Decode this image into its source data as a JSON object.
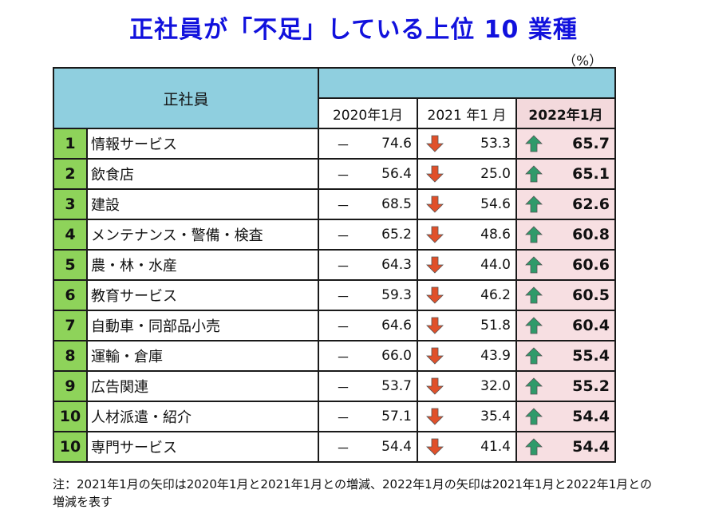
{
  "title": "正社員が「不足」している上位 10 業種",
  "unit": "（%）",
  "table": {
    "corner_label": "正社員",
    "columns": [
      "2020年1月",
      "2021 年1 月",
      "2022年1月"
    ],
    "rows": [
      {
        "rank": "1",
        "industry": "情報サービス",
        "v2020": "74.6",
        "v2021": "53.3",
        "v2022": "65.7"
      },
      {
        "rank": "2",
        "industry": "飲食店",
        "v2020": "56.4",
        "v2021": "25.0",
        "v2022": "65.1"
      },
      {
        "rank": "3",
        "industry": "建設",
        "v2020": "68.5",
        "v2021": "54.6",
        "v2022": "62.6"
      },
      {
        "rank": "4",
        "industry": "メンテナンス・警備・検査",
        "v2020": "65.2",
        "v2021": "48.6",
        "v2022": "60.8"
      },
      {
        "rank": "5",
        "industry": "農・林・水産",
        "v2020": "64.3",
        "v2021": "44.0",
        "v2022": "60.6"
      },
      {
        "rank": "6",
        "industry": "教育サービス",
        "v2020": "59.3",
        "v2021": "46.2",
        "v2022": "60.5"
      },
      {
        "rank": "7",
        "industry": "自動車・同部品小売",
        "v2020": "64.6",
        "v2021": "51.8",
        "v2022": "60.4"
      },
      {
        "rank": "8",
        "industry": "運輸・倉庫",
        "v2020": "66.0",
        "v2021": "43.9",
        "v2022": "55.4"
      },
      {
        "rank": "9",
        "industry": "広告関連",
        "v2020": "53.7",
        "v2021": "32.0",
        "v2022": "55.2"
      },
      {
        "rank": "10",
        "industry": "人材派遣・紹介",
        "v2020": "57.1",
        "v2021": "35.4",
        "v2022": "54.4"
      },
      {
        "rank": "10",
        "industry": "専門サービス",
        "v2020": "54.4",
        "v2021": "41.4",
        "v2022": "54.4"
      }
    ]
  },
  "dash": "－",
  "note": "注：2021年1月の矢印は2020年1月と2021年1月との増減、2022年1月の矢印は2021年1月と2022年1月との増減を表す",
  "colors": {
    "up": "#2f9a6a",
    "down": "#e0502a",
    "rank_bg": "#8ed35a",
    "header_bg": "#8fcfdf",
    "highlight_bg": "#f7dfe2"
  },
  "chart_data": {
    "type": "table",
    "title": "正社員が「不足」している上位 10 業種",
    "unit": "（%）",
    "columns": [
      "2020年1月",
      "2021 年1 月",
      "2022年1月"
    ],
    "categories": [
      "情報サービス",
      "飲食店",
      "建設",
      "メンテナンス・警備・検査",
      "農・林・水産",
      "教育サービス",
      "自動車・同部品小売",
      "運輸・倉庫",
      "広告関連",
      "人材派遣・紹介",
      "専門サービス"
    ],
    "series": [
      {
        "name": "2020年1月",
        "values": [
          74.6,
          56.4,
          68.5,
          65.2,
          64.3,
          59.3,
          64.6,
          66.0,
          53.7,
          57.1,
          54.4
        ]
      },
      {
        "name": "2021 年1 月",
        "values": [
          53.3,
          25.0,
          54.6,
          48.6,
          44.0,
          46.2,
          51.8,
          43.9,
          32.0,
          35.4,
          41.4
        ]
      },
      {
        "name": "2022年1月",
        "values": [
          65.7,
          65.1,
          62.6,
          60.8,
          60.6,
          60.5,
          60.4,
          55.4,
          55.2,
          54.4,
          54.4
        ]
      }
    ]
  }
}
